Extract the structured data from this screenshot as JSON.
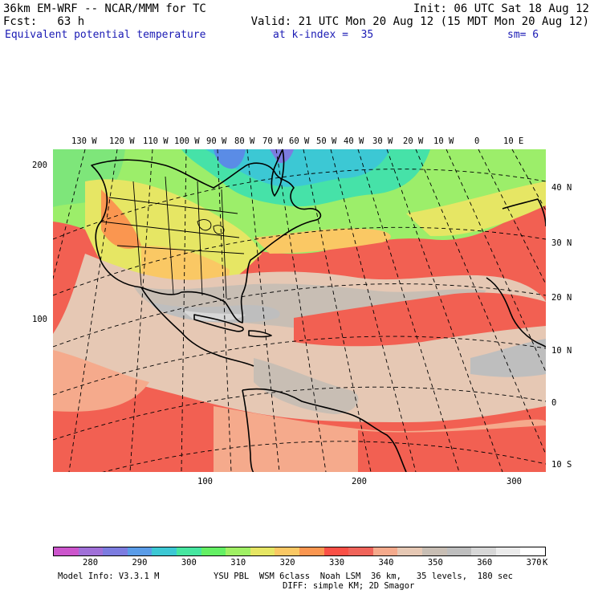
{
  "header": {
    "line1_left": "36km EM-WRF -- NCAR/MMM for TC",
    "line1_right": "Init: 06 UTC Sat 18 Aug 12",
    "line2_left": "Fcst:   63 h",
    "line2_right": "Valid: 21 UTC Mon 20 Aug 12 (15 MDT Mon 20 Aug 12)",
    "field_name": "Equivalent potential temperature",
    "kindex": "at k-index =  35",
    "smoothing": "sm= 6"
  },
  "map": {
    "top_longitude_labels": [
      "130 W",
      "120 W",
      "110 W",
      "100 W",
      "90 W",
      "80 W",
      "70 W",
      "60 W",
      "50 W",
      "40 W",
      "30 W",
      "20 W",
      "10 W",
      "0",
      "10 E"
    ],
    "right_latitude_labels": [
      "40 N",
      "30 N",
      "20 N",
      "10 N",
      "0",
      "10 S"
    ],
    "left_grid_labels": [
      "200",
      "100"
    ],
    "bottom_grid_labels": [
      "100",
      "200",
      "300"
    ]
  },
  "colorbar": {
    "colors": [
      "#cc55cc",
      "#a070d8",
      "#7c7ce0",
      "#5a9ce8",
      "#3cc8d4",
      "#46e6a0",
      "#64f064",
      "#a0f064",
      "#e6e664",
      "#fac864",
      "#fa9650",
      "#fa5046",
      "#f0645a",
      "#f5aa8c",
      "#e6c8b4",
      "#c8beb4",
      "#bebebe",
      "#d7d7d7",
      "#ebebeb",
      "#ffffff"
    ],
    "labels": [
      "280",
      "290",
      "300",
      "310",
      "320",
      "330",
      "340",
      "350",
      "360",
      "370"
    ],
    "unit": "K"
  },
  "footer": {
    "model_info": "Model Info: V3.3.1 M",
    "physics": "YSU PBL  WSM 6class  Noah LSM  36 km,   35 levels,  180 sec",
    "diffusion": "DIFF: simple KM; 2D Smagor"
  }
}
